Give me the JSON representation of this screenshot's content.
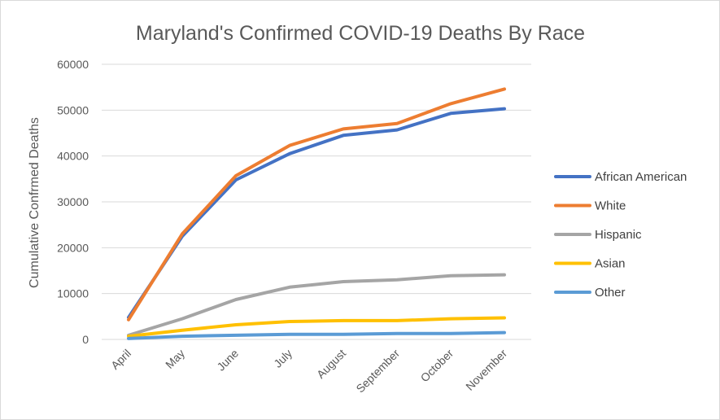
{
  "chart_data": {
    "type": "line",
    "title": "Maryland's Confirmed COVID-19 Deaths By Race",
    "xlabel": "",
    "ylabel": "Cumulative Confrmed Deaths",
    "categories": [
      "April",
      "May",
      "June",
      "July",
      "August",
      "September",
      "October",
      "November"
    ],
    "ylim": [
      0,
      60000
    ],
    "yticks": [
      0,
      10000,
      20000,
      30000,
      40000,
      50000,
      60000
    ],
    "grid": true,
    "legend_position": "right",
    "series": [
      {
        "name": "African American",
        "color": "#4472C4",
        "values": [
          4800,
          22500,
          34800,
          40500,
          44500,
          45700,
          49300,
          50300
        ]
      },
      {
        "name": "White",
        "color": "#ED7D31",
        "values": [
          4300,
          23000,
          35700,
          42300,
          45900,
          47100,
          51400,
          54600
        ]
      },
      {
        "name": "Hispanic",
        "color": "#A5A5A5",
        "values": [
          900,
          4500,
          8700,
          11400,
          12600,
          13000,
          13900,
          14100
        ]
      },
      {
        "name": "Asian",
        "color": "#FFC000",
        "values": [
          700,
          2000,
          3200,
          3900,
          4100,
          4100,
          4500,
          4700
        ]
      },
      {
        "name": "Other",
        "color": "#5B9BD5",
        "values": [
          200,
          700,
          900,
          1100,
          1100,
          1300,
          1300,
          1500
        ]
      }
    ]
  }
}
